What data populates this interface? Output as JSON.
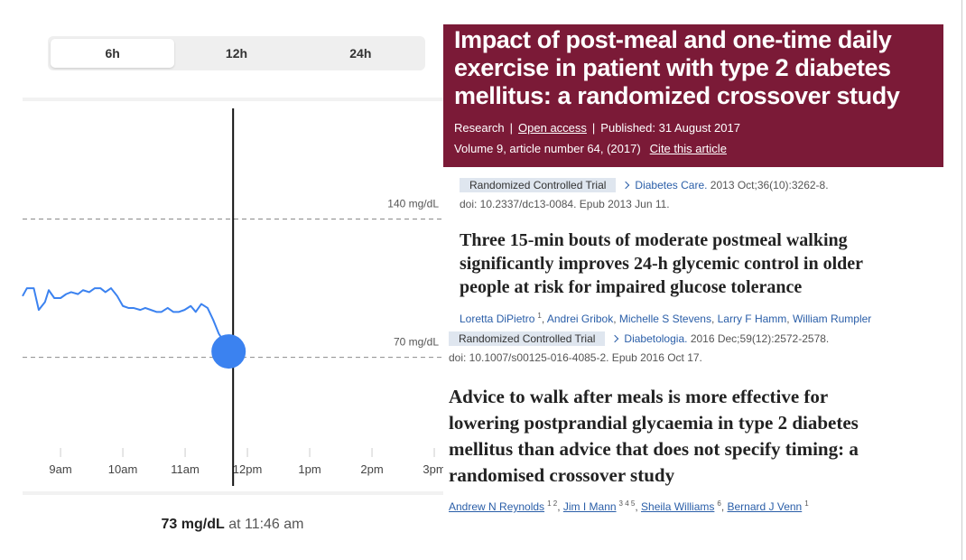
{
  "range_selector": {
    "options": [
      "6h",
      "12h",
      "24h"
    ],
    "selected": 0
  },
  "chart_data": {
    "type": "line",
    "color": "#3b82f0",
    "x": [
      8.39,
      8.46,
      8.57,
      8.65,
      8.75,
      8.81,
      8.9,
      9.0,
      9.09,
      9.17,
      9.28,
      9.36,
      9.46,
      9.55,
      9.64,
      9.72,
      9.81,
      9.91,
      10.0,
      10.09,
      10.17,
      10.28,
      10.36,
      10.45,
      10.54,
      10.62,
      10.72,
      10.81,
      10.9,
      10.99,
      11.09,
      11.17,
      11.26,
      11.36,
      11.45,
      11.54,
      11.62,
      11.77
    ],
    "values": [
      101,
      105,
      105,
      94,
      98,
      104,
      100,
      100,
      102,
      103,
      102,
      104,
      103,
      105,
      105,
      103,
      105,
      101,
      96,
      95,
      95,
      94,
      95,
      94,
      93,
      93,
      95,
      93,
      93,
      94,
      96,
      93,
      97,
      95,
      89,
      82,
      78,
      73
    ],
    "xlim": [
      8.39,
      15.13
    ],
    "ylim": [
      4,
      196
    ],
    "xticks": [
      {
        "value": 9,
        "label": "9am"
      },
      {
        "value": 10,
        "label": "10am"
      },
      {
        "value": 11,
        "label": "11am"
      },
      {
        "value": 12,
        "label": "12pm"
      },
      {
        "value": 13,
        "label": "1pm"
      },
      {
        "value": 14,
        "label": "2pm"
      },
      {
        "value": 15,
        "label": "3pm"
      }
    ],
    "yticks": [
      {
        "value": 140,
        "label": "140 mg/dL"
      },
      {
        "value": 70,
        "label": "70 mg/dL"
      }
    ]
  },
  "readout": {
    "value": "73 mg/dL",
    "time": "at 11:46 am"
  },
  "article": {
    "title_lines": [
      "Impact of post-meal and one-time daily",
      "exercise in patient with type 2 diabetes",
      "mellitus: a randomized crossover study"
    ],
    "meta": [
      "Research",
      "Open access",
      "Published: 31 August 2017"
    ],
    "volume": "Volume 9, article number 64, (2017)",
    "cite": "Cite this article"
  },
  "pubmed": [
    {
      "badge": "Randomized Controlled Trial",
      "journal": "Diabetes Care.",
      "citation": "2013 Oct;36(10):3262-8.",
      "doi": "doi: 10.2337/dc13-0084. Epub 2013 Jun 11.",
      "title_lines": [
        "Three 15-min bouts of moderate postmeal walking",
        "significantly improves 24-h glycemic control in older",
        "people at risk for impaired glucose tolerance"
      ],
      "authors": [
        {
          "name": "Loretta DiPietro",
          "sup": "1"
        },
        {
          "name": "Andrei Gribok"
        },
        {
          "name": "Michelle S Stevens"
        },
        {
          "name": "Larry F Hamm"
        },
        {
          "name": "William Rumpler"
        }
      ]
    },
    {
      "badge": "Randomized Controlled Trial",
      "journal": "Diabetologia.",
      "citation": "2016 Dec;59(12):2572-2578.",
      "doi": "doi: 10.1007/s00125-016-4085-2. Epub 2016 Oct 17.",
      "title_lines": [
        "Advice to walk after meals is more effective for",
        "lowering postprandial glycaemia in type 2 diabetes",
        "mellitus than advice that does not specify timing: a",
        "randomised crossover study"
      ],
      "authors": [
        {
          "name": "Andrew N Reynolds",
          "sup": "1 2"
        },
        {
          "name": "Jim I Mann",
          "sup": "3 4 5"
        },
        {
          "name": "Sheila Williams",
          "sup": "6"
        },
        {
          "name": "Bernard J Venn",
          "sup": "1"
        }
      ]
    }
  ]
}
